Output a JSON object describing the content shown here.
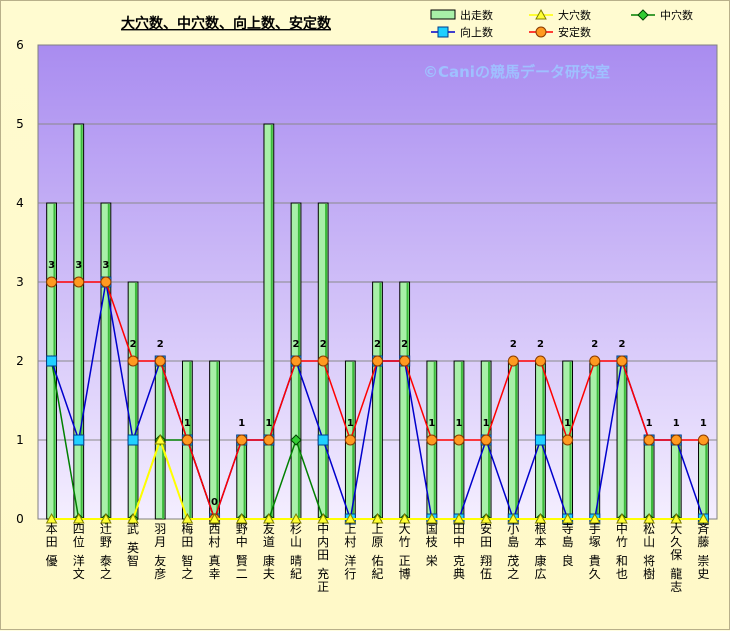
{
  "chart_data": {
    "type": "bar",
    "title": "大穴数、中穴数、向上数、安定数",
    "watermark": "©Caniの競馬データ研究室",
    "ylim": [
      0,
      6
    ],
    "yticks": [
      0,
      1,
      2,
      3,
      4,
      5,
      6
    ],
    "grid": true,
    "legend_position": "top-right",
    "categories": [
      "本田 優",
      "四位 洋文",
      "辻野 泰之",
      "武 英智",
      "羽月 友彦",
      "梅田 智之",
      "西村 真幸",
      "野中 賢二",
      "友道 康夫",
      "杉山 晴紀",
      "中内田 充正",
      "上村 洋行",
      "上原 佑紀",
      "大竹 正博",
      "国枝 栄",
      "田中 克典",
      "安田 翔伍",
      "小島 茂之",
      "根本 康広",
      "寺島 良",
      "手塚 貴久",
      "中竹 和也",
      "松山 将樹",
      "大久保 龍志",
      "斉藤 崇史"
    ],
    "series": [
      {
        "name": "出走数",
        "kind": "bar",
        "color": "#a8f0a8",
        "values": [
          4,
          5,
          4,
          3,
          2,
          2,
          2,
          1,
          5,
          4,
          4,
          2,
          3,
          3,
          2,
          2,
          2,
          2,
          2,
          2,
          2,
          2,
          1,
          1,
          1
        ]
      },
      {
        "name": "大穴数",
        "kind": "line",
        "marker": "triangle",
        "color": "#ffff00",
        "values": [
          0,
          0,
          0,
          0,
          1,
          0,
          0,
          0,
          0,
          0,
          0,
          0,
          0,
          0,
          0,
          0,
          0,
          0,
          0,
          0,
          0,
          0,
          0,
          0,
          0
        ]
      },
      {
        "name": "中穴数",
        "kind": "line",
        "marker": "diamond",
        "color": "#008000",
        "values": [
          2,
          0,
          0,
          0,
          1,
          1,
          0,
          0,
          0,
          1,
          0,
          0,
          0,
          0,
          0,
          0,
          0,
          0,
          0,
          0,
          0,
          0,
          0,
          0,
          0
        ]
      },
      {
        "name": "向上数",
        "kind": "line",
        "marker": "square",
        "color": "#0000cc",
        "values": [
          2,
          1,
          3,
          1,
          2,
          1,
          0,
          1,
          1,
          2,
          1,
          0,
          2,
          2,
          0,
          0,
          1,
          0,
          1,
          0,
          0,
          2,
          1,
          1,
          0
        ]
      },
      {
        "name": "安定数",
        "kind": "line",
        "marker": "circle",
        "color": "#ff0000",
        "values": [
          3,
          3,
          3,
          2,
          2,
          1,
          0,
          1,
          1,
          2,
          2,
          1,
          2,
          2,
          1,
          1,
          1,
          2,
          2,
          1,
          2,
          2,
          1,
          1,
          1
        ]
      }
    ]
  }
}
